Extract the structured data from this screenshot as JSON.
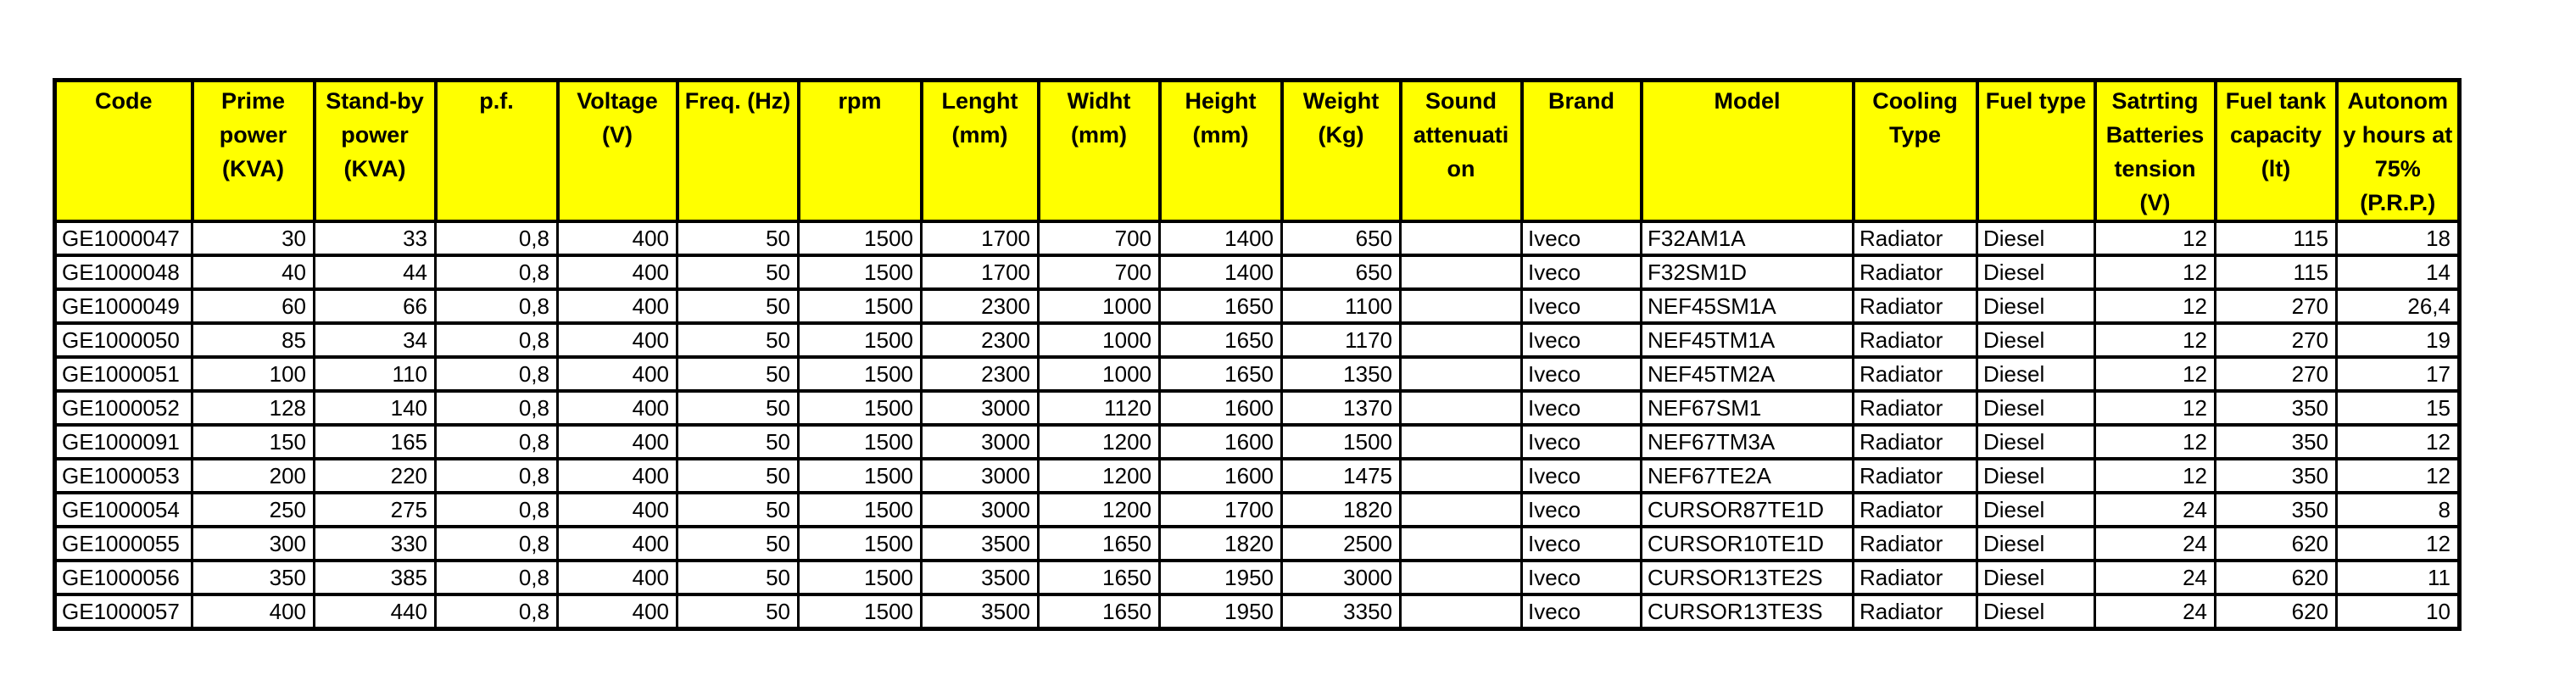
{
  "page": {
    "background_color": "#ffffff",
    "text_color": "#000000"
  },
  "table": {
    "header_fill_color": "#ffff00",
    "border_color": "#000000",
    "columns": [
      {
        "id": "code",
        "label": "Code",
        "align": "left"
      },
      {
        "id": "prime_power_kva",
        "label": "Prime\npower\n(KVA)",
        "align": "right"
      },
      {
        "id": "standby_power_kva",
        "label": "Stand-by\npower\n(KVA)",
        "align": "right"
      },
      {
        "id": "pf",
        "label": "p.f.",
        "align": "right"
      },
      {
        "id": "voltage_v",
        "label": "Voltage\n(V)",
        "align": "right"
      },
      {
        "id": "freq_hz",
        "label": "Freq. (Hz)",
        "align": "right"
      },
      {
        "id": "rpm",
        "label": "rpm",
        "align": "right"
      },
      {
        "id": "length_mm",
        "label": "Lenght\n(mm)",
        "align": "right"
      },
      {
        "id": "width_mm",
        "label": "Widht\n(mm)",
        "align": "right"
      },
      {
        "id": "height_mm",
        "label": "Height\n(mm)",
        "align": "right"
      },
      {
        "id": "weight_kg",
        "label": "Weight\n(Kg)",
        "align": "right"
      },
      {
        "id": "sound_attenuation",
        "label": "Sound\nattenuati\non",
        "align": "right"
      },
      {
        "id": "brand",
        "label": "Brand",
        "align": "left"
      },
      {
        "id": "model",
        "label": "Model",
        "align": "left"
      },
      {
        "id": "cooling_type",
        "label": "Cooling\nType",
        "align": "left"
      },
      {
        "id": "fuel_type",
        "label": "Fuel type",
        "align": "left"
      },
      {
        "id": "starting_batteries_tension_v",
        "label": "Satrting\nBatteries\ntension\n(V)",
        "align": "right"
      },
      {
        "id": "fuel_tank_capacity_lt",
        "label": "Fuel tank\ncapacity\n(lt)",
        "align": "right"
      },
      {
        "id": "autonomy_hours_75_prp",
        "label": "Autonom\ny hours at\n75%\n(P.R.P.)",
        "align": "right"
      }
    ],
    "rows": [
      [
        "GE1000047",
        "30",
        "33",
        "0,8",
        "400",
        "50",
        "1500",
        "1700",
        "700",
        "1400",
        "650",
        "",
        "Iveco",
        "F32AM1A",
        "Radiator",
        "Diesel",
        "12",
        "115",
        "18"
      ],
      [
        "GE1000048",
        "40",
        "44",
        "0,8",
        "400",
        "50",
        "1500",
        "1700",
        "700",
        "1400",
        "650",
        "",
        "Iveco",
        "F32SM1D",
        "Radiator",
        "Diesel",
        "12",
        "115",
        "14"
      ],
      [
        "GE1000049",
        "60",
        "66",
        "0,8",
        "400",
        "50",
        "1500",
        "2300",
        "1000",
        "1650",
        "1100",
        "",
        "Iveco",
        "NEF45SM1A",
        "Radiator",
        "Diesel",
        "12",
        "270",
        "26,4"
      ],
      [
        "GE1000050",
        "85",
        "34",
        "0,8",
        "400",
        "50",
        "1500",
        "2300",
        "1000",
        "1650",
        "1170",
        "",
        "Iveco",
        "NEF45TM1A",
        "Radiator",
        "Diesel",
        "12",
        "270",
        "19"
      ],
      [
        "GE1000051",
        "100",
        "110",
        "0,8",
        "400",
        "50",
        "1500",
        "2300",
        "1000",
        "1650",
        "1350",
        "",
        "Iveco",
        "NEF45TM2A",
        "Radiator",
        "Diesel",
        "12",
        "270",
        "17"
      ],
      [
        "GE1000052",
        "128",
        "140",
        "0,8",
        "400",
        "50",
        "1500",
        "3000",
        "1120",
        "1600",
        "1370",
        "",
        "Iveco",
        "NEF67SM1",
        "Radiator",
        "Diesel",
        "12",
        "350",
        "15"
      ],
      [
        "GE1000091",
        "150",
        "165",
        "0,8",
        "400",
        "50",
        "1500",
        "3000",
        "1200",
        "1600",
        "1500",
        "",
        "Iveco",
        "NEF67TM3A",
        "Radiator",
        "Diesel",
        "12",
        "350",
        "12"
      ],
      [
        "GE1000053",
        "200",
        "220",
        "0,8",
        "400",
        "50",
        "1500",
        "3000",
        "1200",
        "1600",
        "1475",
        "",
        "Iveco",
        "NEF67TE2A",
        "Radiator",
        "Diesel",
        "12",
        "350",
        "12"
      ],
      [
        "GE1000054",
        "250",
        "275",
        "0,8",
        "400",
        "50",
        "1500",
        "3000",
        "1200",
        "1700",
        "1820",
        "",
        "Iveco",
        "CURSOR87TE1D",
        "Radiator",
        "Diesel",
        "24",
        "350",
        "8"
      ],
      [
        "GE1000055",
        "300",
        "330",
        "0,8",
        "400",
        "50",
        "1500",
        "3500",
        "1650",
        "1820",
        "2500",
        "",
        "Iveco",
        "CURSOR10TE1D",
        "Radiator",
        "Diesel",
        "24",
        "620",
        "12"
      ],
      [
        "GE1000056",
        "350",
        "385",
        "0,8",
        "400",
        "50",
        "1500",
        "3500",
        "1650",
        "1950",
        "3000",
        "",
        "Iveco",
        "CURSOR13TE2S",
        "Radiator",
        "Diesel",
        "24",
        "620",
        "11"
      ],
      [
        "GE1000057",
        "400",
        "440",
        "0,8",
        "400",
        "50",
        "1500",
        "3500",
        "1650",
        "1950",
        "3350",
        "",
        "Iveco",
        "CURSOR13TE3S",
        "Radiator",
        "Diesel",
        "24",
        "620",
        "10"
      ]
    ]
  }
}
